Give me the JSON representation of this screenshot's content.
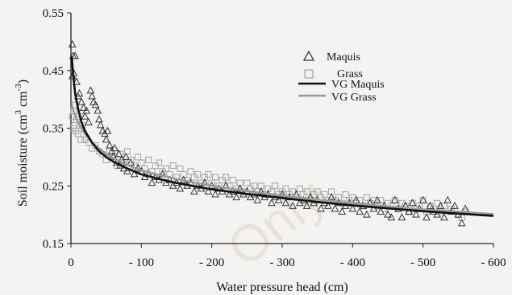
{
  "chart_data": {
    "type": "scatter",
    "xlabel": "Water pressure head (cm)",
    "ylabel_main": "Soil moisture (cm",
    "ylabel_sup1": "3",
    "ylabel_mid": " cm",
    "ylabel_sup2": "-3",
    "ylabel_end": ")",
    "xlim": [
      0,
      -600
    ],
    "ylim": [
      0.15,
      0.55
    ],
    "xticks": [
      0,
      -100,
      -200,
      -300,
      -400,
      -500,
      -600
    ],
    "xtick_labels": [
      "0",
      "- 100",
      "- 200",
      "- 300",
      "- 400",
      "- 500",
      "- 600"
    ],
    "yticks": [
      0.15,
      0.25,
      0.35,
      0.45,
      0.55
    ],
    "ytick_labels": [
      "0.15",
      "0.25",
      "0.35",
      "0.45",
      "0.55"
    ],
    "legend_position": "top-right",
    "series": [
      {
        "name": "Maquis",
        "kind": "scatter",
        "marker": "triangle",
        "color": "#333333",
        "points": [
          [
            -2,
            0.495
          ],
          [
            -3,
            0.475
          ],
          [
            -6,
            0.475
          ],
          [
            -2,
            0.44
          ],
          [
            -4,
            0.445
          ],
          [
            -8,
            0.43
          ],
          [
            -10,
            0.405
          ],
          [
            -12,
            0.41
          ],
          [
            -15,
            0.395
          ],
          [
            -18,
            0.385
          ],
          [
            -20,
            0.37
          ],
          [
            -22,
            0.38
          ],
          [
            -25,
            0.36
          ],
          [
            -28,
            0.415
          ],
          [
            -30,
            0.405
          ],
          [
            -32,
            0.395
          ],
          [
            -35,
            0.39
          ],
          [
            -38,
            0.38
          ],
          [
            -40,
            0.365
          ],
          [
            -42,
            0.355
          ],
          [
            -45,
            0.345
          ],
          [
            -48,
            0.34
          ],
          [
            -50,
            0.33
          ],
          [
            -52,
            0.345
          ],
          [
            -55,
            0.32
          ],
          [
            -58,
            0.31
          ],
          [
            -60,
            0.3
          ],
          [
            -62,
            0.315
          ],
          [
            -65,
            0.29
          ],
          [
            -68,
            0.305
          ],
          [
            -70,
            0.285
          ],
          [
            -72,
            0.295
          ],
          [
            -75,
            0.28
          ],
          [
            -78,
            0.3
          ],
          [
            -80,
            0.275
          ],
          [
            -85,
            0.29
          ],
          [
            -90,
            0.27
          ],
          [
            -95,
            0.28
          ],
          [
            -100,
            0.275
          ],
          [
            -105,
            0.265
          ],
          [
            -110,
            0.27
          ],
          [
            -115,
            0.255
          ],
          [
            -120,
            0.265
          ],
          [
            -125,
            0.26
          ],
          [
            -130,
            0.27
          ],
          [
            -135,
            0.255
          ],
          [
            -140,
            0.26
          ],
          [
            -145,
            0.25
          ],
          [
            -150,
            0.255
          ],
          [
            -155,
            0.245
          ],
          [
            -160,
            0.26
          ],
          [
            -165,
            0.25
          ],
          [
            -170,
            0.255
          ],
          [
            -175,
            0.24
          ],
          [
            -180,
            0.25
          ],
          [
            -185,
            0.245
          ],
          [
            -190,
            0.255
          ],
          [
            -195,
            0.24
          ],
          [
            -200,
            0.25
          ],
          [
            -205,
            0.235
          ],
          [
            -210,
            0.245
          ],
          [
            -215,
            0.24
          ],
          [
            -220,
            0.25
          ],
          [
            -225,
            0.235
          ],
          [
            -230,
            0.24
          ],
          [
            -235,
            0.23
          ],
          [
            -240,
            0.245
          ],
          [
            -245,
            0.235
          ],
          [
            -250,
            0.24
          ],
          [
            -255,
            0.23
          ],
          [
            -260,
            0.235
          ],
          [
            -265,
            0.225
          ],
          [
            -270,
            0.24
          ],
          [
            -275,
            0.23
          ],
          [
            -280,
            0.235
          ],
          [
            -285,
            0.22
          ],
          [
            -290,
            0.23
          ],
          [
            -295,
            0.225
          ],
          [
            -300,
            0.235
          ],
          [
            -305,
            0.22
          ],
          [
            -310,
            0.23
          ],
          [
            -315,
            0.215
          ],
          [
            -320,
            0.235
          ],
          [
            -325,
            0.22
          ],
          [
            -330,
            0.225
          ],
          [
            -335,
            0.215
          ],
          [
            -340,
            0.23
          ],
          [
            -345,
            0.22
          ],
          [
            -350,
            0.225
          ],
          [
            -355,
            0.21
          ],
          [
            -360,
            0.22
          ],
          [
            -365,
            0.215
          ],
          [
            -370,
            0.23
          ],
          [
            -375,
            0.21
          ],
          [
            -380,
            0.22
          ],
          [
            -385,
            0.205
          ],
          [
            -390,
            0.215
          ],
          [
            -395,
            0.22
          ],
          [
            -400,
            0.21
          ],
          [
            -405,
            0.225
          ],
          [
            -410,
            0.205
          ],
          [
            -415,
            0.215
          ],
          [
            -420,
            0.2
          ],
          [
            -425,
            0.22
          ],
          [
            -430,
            0.21
          ],
          [
            -435,
            0.225
          ],
          [
            -440,
            0.205
          ],
          [
            -445,
            0.215
          ],
          [
            -450,
            0.2
          ],
          [
            -455,
            0.195
          ],
          [
            -460,
            0.225
          ],
          [
            -465,
            0.21
          ],
          [
            -470,
            0.195
          ],
          [
            -475,
            0.215
          ],
          [
            -480,
            0.205
          ],
          [
            -485,
            0.22
          ],
          [
            -490,
            0.2
          ],
          [
            -495,
            0.21
          ],
          [
            -500,
            0.225
          ],
          [
            -505,
            0.195
          ],
          [
            -510,
            0.215
          ],
          [
            -515,
            0.205
          ],
          [
            -520,
            0.2
          ],
          [
            -525,
            0.215
          ],
          [
            -530,
            0.195
          ],
          [
            -535,
            0.225
          ],
          [
            -540,
            0.205
          ],
          [
            -545,
            0.215
          ],
          [
            -550,
            0.2
          ],
          [
            -555,
            0.185
          ],
          [
            -560,
            0.21
          ]
        ]
      },
      {
        "name": "Grass",
        "kind": "scatter",
        "marker": "square",
        "color": "#a8a8a8",
        "points": [
          [
            -2,
            0.37
          ],
          [
            -3,
            0.35
          ],
          [
            -4,
            0.38
          ],
          [
            -5,
            0.355
          ],
          [
            -6,
            0.39
          ],
          [
            -7,
            0.345
          ],
          [
            -8,
            0.365
          ],
          [
            -10,
            0.34
          ],
          [
            -12,
            0.37
          ],
          [
            -14,
            0.33
          ],
          [
            -16,
            0.355
          ],
          [
            -18,
            0.34
          ],
          [
            -20,
            0.33
          ],
          [
            -25,
            0.325
          ],
          [
            -30,
            0.315
          ],
          [
            -35,
            0.32
          ],
          [
            -40,
            0.31
          ],
          [
            -45,
            0.305
          ],
          [
            -50,
            0.295
          ],
          [
            -55,
            0.31
          ],
          [
            -60,
            0.3
          ],
          [
            -65,
            0.285
          ],
          [
            -70,
            0.305
          ],
          [
            -75,
            0.29
          ],
          [
            -80,
            0.31
          ],
          [
            -85,
            0.295
          ],
          [
            -90,
            0.285
          ],
          [
            -95,
            0.3
          ],
          [
            -100,
            0.29
          ],
          [
            -105,
            0.28
          ],
          [
            -110,
            0.295
          ],
          [
            -115,
            0.275
          ],
          [
            -120,
            0.285
          ],
          [
            -125,
            0.29
          ],
          [
            -130,
            0.275
          ],
          [
            -135,
            0.28
          ],
          [
            -140,
            0.27
          ],
          [
            -145,
            0.285
          ],
          [
            -150,
            0.265
          ],
          [
            -155,
            0.28
          ],
          [
            -160,
            0.27
          ],
          [
            -165,
            0.26
          ],
          [
            -170,
            0.275
          ],
          [
            -175,
            0.265
          ],
          [
            -180,
            0.27
          ],
          [
            -185,
            0.255
          ],
          [
            -190,
            0.265
          ],
          [
            -195,
            0.27
          ],
          [
            -200,
            0.255
          ],
          [
            -205,
            0.265
          ],
          [
            -210,
            0.25
          ],
          [
            -215,
            0.26
          ],
          [
            -220,
            0.265
          ],
          [
            -225,
            0.25
          ],
          [
            -230,
            0.26
          ],
          [
            -235,
            0.245
          ],
          [
            -240,
            0.255
          ],
          [
            -245,
            0.24
          ],
          [
            -250,
            0.255
          ],
          [
            -255,
            0.245
          ],
          [
            -260,
            0.25
          ],
          [
            -265,
            0.24
          ],
          [
            -270,
            0.25
          ],
          [
            -275,
            0.235
          ],
          [
            -280,
            0.245
          ],
          [
            -285,
            0.24
          ],
          [
            -290,
            0.25
          ],
          [
            -295,
            0.235
          ],
          [
            -300,
            0.24
          ],
          [
            -305,
            0.245
          ],
          [
            -310,
            0.235
          ],
          [
            -315,
            0.24
          ],
          [
            -320,
            0.23
          ],
          [
            -325,
            0.245
          ],
          [
            -330,
            0.235
          ],
          [
            -335,
            0.24
          ],
          [
            -340,
            0.225
          ],
          [
            -345,
            0.235
          ],
          [
            -350,
            0.24
          ],
          [
            -355,
            0.23
          ],
          [
            -360,
            0.235
          ],
          [
            -365,
            0.225
          ],
          [
            -370,
            0.24
          ],
          [
            -375,
            0.225
          ],
          [
            -380,
            0.23
          ],
          [
            -385,
            0.22
          ],
          [
            -390,
            0.235
          ],
          [
            -395,
            0.225
          ],
          [
            -400,
            0.23
          ],
          [
            -405,
            0.22
          ],
          [
            -410,
            0.225
          ],
          [
            -415,
            0.215
          ],
          [
            -420,
            0.23
          ],
          [
            -425,
            0.22
          ],
          [
            -430,
            0.225
          ],
          [
            -435,
            0.215
          ],
          [
            -440,
            0.225
          ],
          [
            -445,
            0.21
          ],
          [
            -450,
            0.22
          ],
          [
            -455,
            0.215
          ],
          [
            -460,
            0.225
          ],
          [
            -465,
            0.21
          ],
          [
            -470,
            0.22
          ],
          [
            -475,
            0.215
          ],
          [
            -480,
            0.205
          ],
          [
            -485,
            0.22
          ],
          [
            -490,
            0.21
          ],
          [
            -495,
            0.215
          ],
          [
            -500,
            0.225
          ],
          [
            -505,
            0.205
          ],
          [
            -510,
            0.215
          ],
          [
            -515,
            0.21
          ],
          [
            -520,
            0.22
          ],
          [
            -525,
            0.205
          ],
          [
            -530,
            0.215
          ],
          [
            -540,
            0.21
          ],
          [
            -550,
            0.2
          ],
          [
            -555,
            0.195
          ],
          [
            -560,
            0.205
          ]
        ]
      },
      {
        "name": "VG Maquis",
        "kind": "line",
        "color": "#111111",
        "points": [
          [
            -1,
            0.475
          ],
          [
            -3,
            0.445
          ],
          [
            -6,
            0.41
          ],
          [
            -10,
            0.385
          ],
          [
            -15,
            0.36
          ],
          [
            -20,
            0.345
          ],
          [
            -30,
            0.325
          ],
          [
            -40,
            0.31
          ],
          [
            -50,
            0.3
          ],
          [
            -60,
            0.292
          ],
          [
            -80,
            0.28
          ],
          [
            -100,
            0.27
          ],
          [
            -125,
            0.262
          ],
          [
            -150,
            0.255
          ],
          [
            -200,
            0.244
          ],
          [
            -250,
            0.236
          ],
          [
            -300,
            0.229
          ],
          [
            -350,
            0.222
          ],
          [
            -400,
            0.216
          ],
          [
            -450,
            0.211
          ],
          [
            -500,
            0.206
          ],
          [
            -550,
            0.202
          ],
          [
            -600,
            0.198
          ]
        ]
      },
      {
        "name": "VG Grass",
        "kind": "line",
        "color": "#9a9a9a",
        "points": [
          [
            -1,
            0.39
          ],
          [
            -5,
            0.375
          ],
          [
            -10,
            0.36
          ],
          [
            -20,
            0.34
          ],
          [
            -30,
            0.325
          ],
          [
            -40,
            0.315
          ],
          [
            -50,
            0.305
          ],
          [
            -60,
            0.298
          ],
          [
            -80,
            0.286
          ],
          [
            -100,
            0.277
          ],
          [
            -125,
            0.269
          ],
          [
            -150,
            0.262
          ],
          [
            -200,
            0.25
          ],
          [
            -250,
            0.241
          ],
          [
            -300,
            0.233
          ],
          [
            -350,
            0.226
          ],
          [
            -400,
            0.22
          ],
          [
            -450,
            0.214
          ],
          [
            -500,
            0.209
          ],
          [
            -550,
            0.205
          ],
          [
            -600,
            0.201
          ]
        ]
      }
    ]
  },
  "watermark": "Only"
}
